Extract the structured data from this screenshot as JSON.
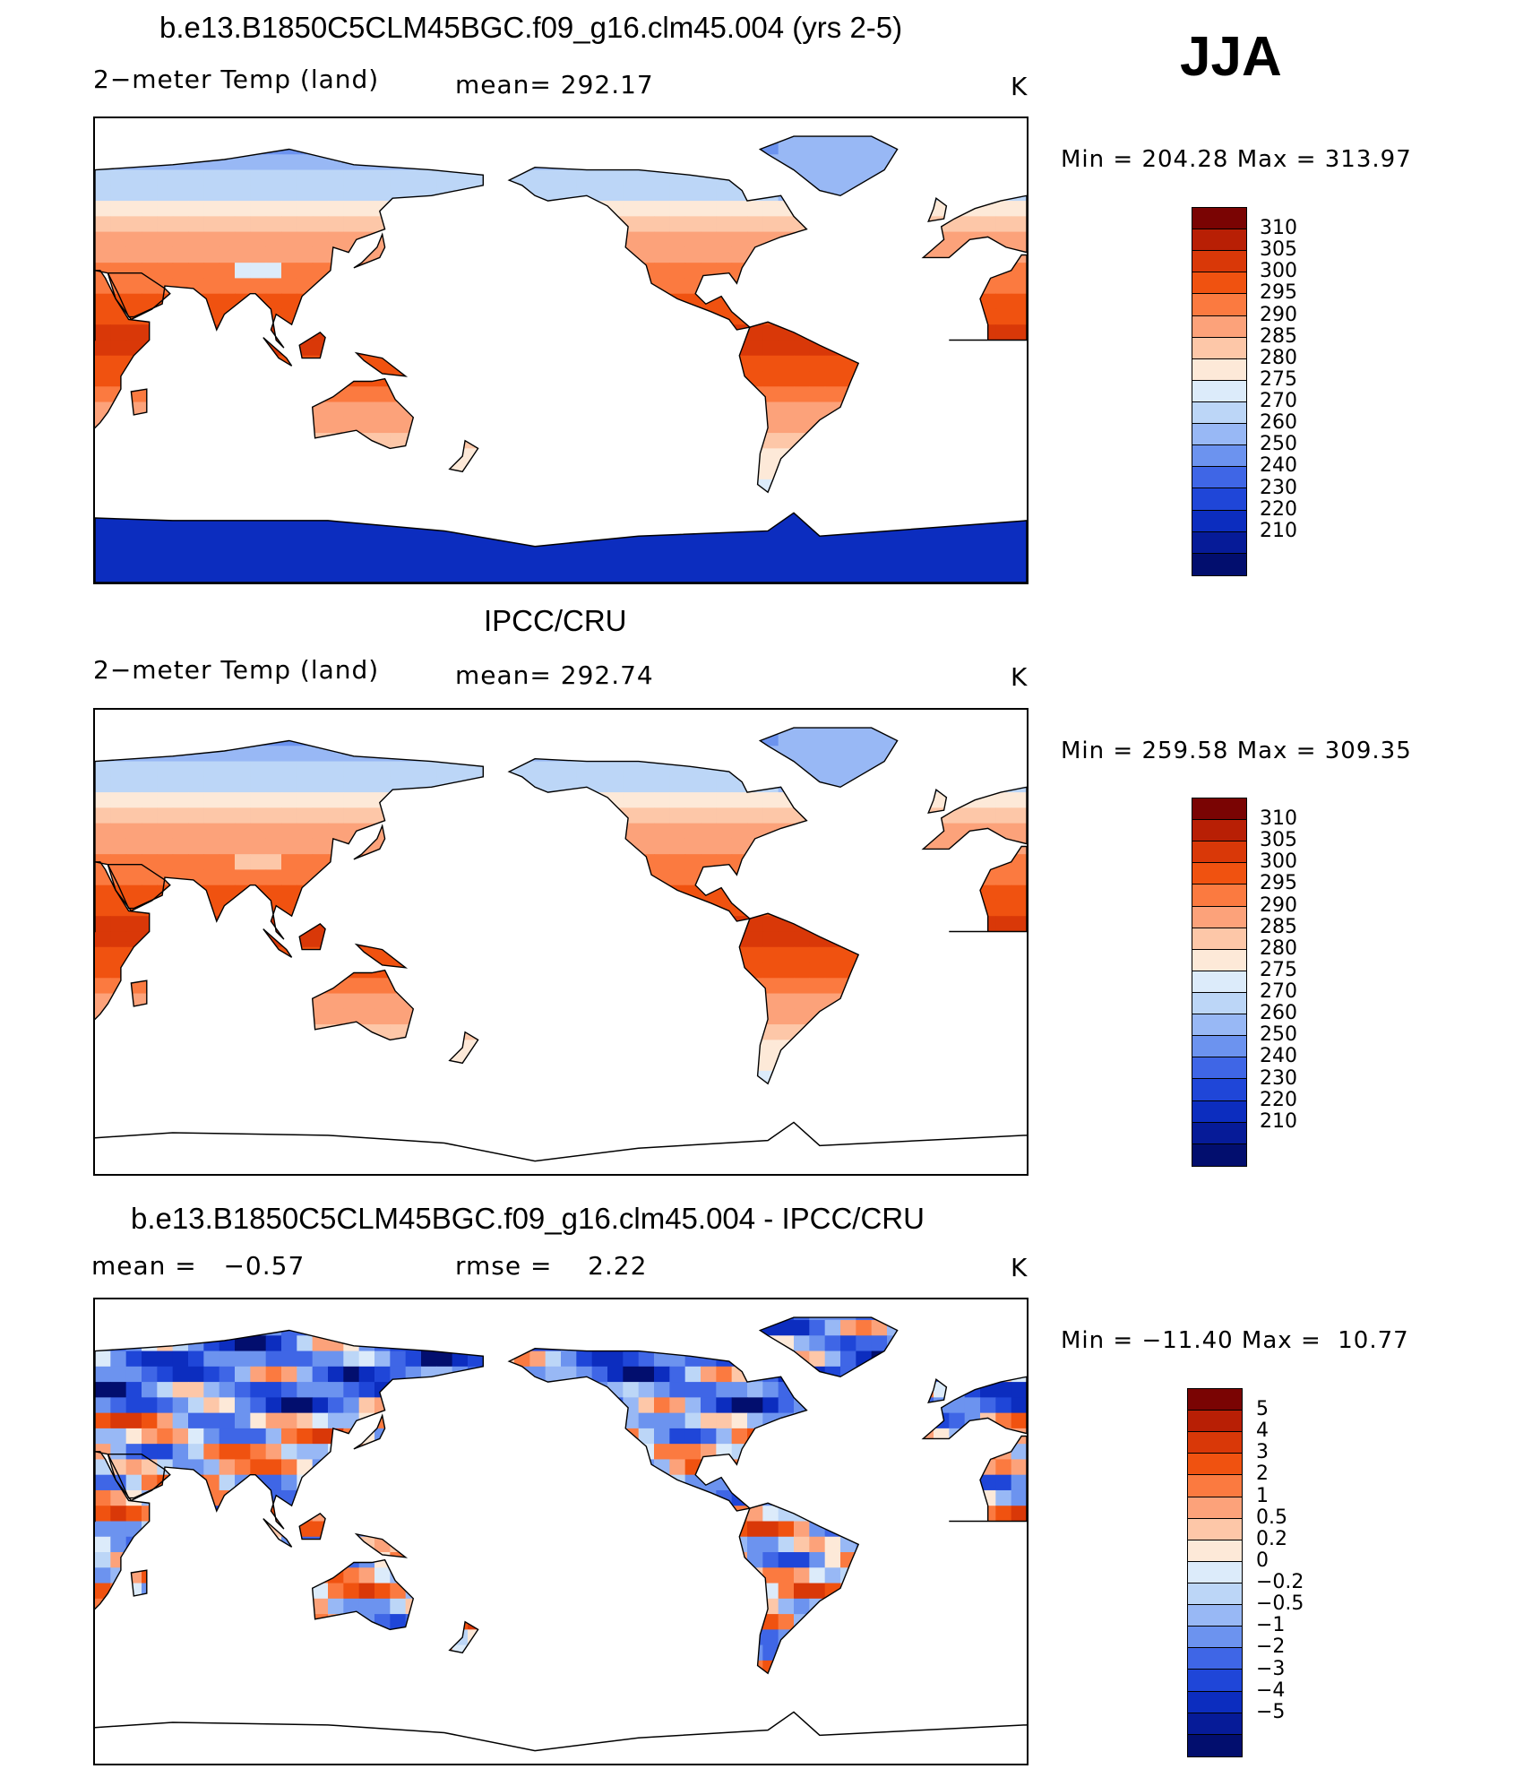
{
  "season": "JJA",
  "colors": {
    "temp_scale": [
      "#7a0403",
      "#b81f05",
      "#d93808",
      "#f05210",
      "#fb7a40",
      "#fca27a",
      "#fdc7a8",
      "#fde9d8",
      "#dcebfa",
      "#bcd6f7",
      "#98b8f5",
      "#6c93ef",
      "#3f66e6",
      "#1f46d8",
      "#0c2dbf",
      "#061b98",
      "#020e6e"
    ],
    "diff_scale": [
      "#7a0403",
      "#b81f05",
      "#d93808",
      "#f05210",
      "#fb7a40",
      "#fca27a",
      "#fdc7a8",
      "#fde9d8",
      "#dcebfa",
      "#bcd6f7",
      "#98b8f5",
      "#6c93ef",
      "#3f66e6",
      "#1f46d8",
      "#0c2dbf",
      "#061b98",
      "#020e6e"
    ],
    "ocean": "#ffffff",
    "coast": "#000000"
  },
  "panels": [
    {
      "title": "b.e13.B1850C5CLM45BGC.f09_g16.clm45.004 (yrs 2-5)",
      "left_label": "2−meter Temp (land)",
      "center_label": "mean= 292.17",
      "unit": "K",
      "minmax": "Min = 204.28 Max = 313.97",
      "field": "model",
      "colorbar": "temp"
    },
    {
      "title": "IPCC/CRU",
      "left_label": "2−meter Temp (land)",
      "center_label": "mean= 292.74",
      "unit": "K",
      "minmax": "Min = 259.58 Max = 309.35",
      "field": "obs",
      "colorbar": "temp"
    },
    {
      "title": "b.e13.B1850C5CLM45BGC.f09_g16.clm45.004 - IPCC/CRU",
      "left_label": "mean =   −0.57",
      "center_label": "rmse =    2.22",
      "unit": "K",
      "minmax": "Min = −11.40 Max =  10.77",
      "field": "diff",
      "colorbar": "diff"
    }
  ],
  "colorbars": {
    "temp": [
      "310",
      "305",
      "300",
      "295",
      "290",
      "285",
      "280",
      "275",
      "270",
      "260",
      "250",
      "240",
      "230",
      "220",
      "210"
    ],
    "diff": [
      "5",
      "4",
      "3",
      "2",
      "1",
      "0.5",
      "0.2",
      "0",
      "−0.2",
      "−0.5",
      "−1",
      "−2",
      "−3",
      "−4",
      "−5"
    ]
  }
}
